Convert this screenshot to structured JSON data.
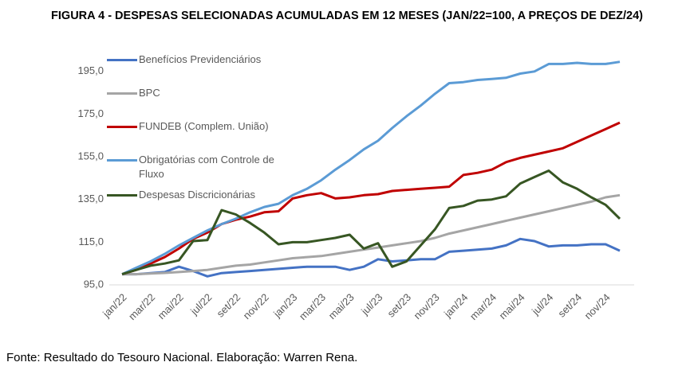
{
  "chart_data": {
    "type": "line",
    "title": "FIGURA 4 - DESPESAS SELECIONADAS ACUMULADAS EM 12 MESES (JAN/22=100, A PREÇOS DE DEZ/24)",
    "source": "Fonte: Resultado do Tesouro Nacional. Elaboração: Warren Rena.",
    "categories": [
      "jan/22",
      null,
      "mar/22",
      null,
      "mai/22",
      null,
      "jul/22",
      null,
      "set/22",
      null,
      "nov/22",
      null,
      "jan/23",
      null,
      "mar/23",
      null,
      "mai/23",
      null,
      "jul/23",
      null,
      "set/23",
      null,
      "nov/23",
      null,
      "jan/24",
      null,
      "mar/24",
      null,
      "mai/24",
      null,
      "jul/24",
      null,
      "set/24",
      null,
      "nov/24",
      null
    ],
    "series": [
      {
        "name": "Benefícios Previdenciários",
        "color": "#4472c4",
        "values": [
          100,
          100,
          100.5,
          101,
          103.5,
          101.5,
          99,
          100.5,
          101,
          101.5,
          102,
          102.5,
          103,
          103.5,
          103.5,
          103.5,
          102,
          103.5,
          107,
          106,
          106.5,
          107,
          107,
          110.5,
          111,
          111.5,
          112,
          113.5,
          116.5,
          115.5,
          113,
          113.5,
          113.5,
          114,
          114,
          111
        ]
      },
      {
        "name": "BPC",
        "color": "#a5a5a5",
        "values": [
          100,
          100,
          100.3,
          100.6,
          101,
          101.5,
          102,
          103,
          104,
          104.5,
          105.5,
          106.5,
          107.5,
          108,
          108.5,
          109.5,
          110.5,
          111.5,
          112.5,
          113.5,
          114.5,
          115.5,
          117,
          119,
          120.5,
          122,
          123.5,
          125,
          126.5,
          128,
          129.5,
          131,
          132.5,
          134,
          136,
          137
        ]
      },
      {
        "name": "FUNDEB (Complem. União)",
        "color": "#c00000",
        "values": [
          100,
          102,
          105,
          108,
          112,
          116.5,
          119.5,
          123.5,
          125.5,
          127,
          129,
          129.5,
          135.5,
          137,
          138,
          135.5,
          136,
          137,
          137.5,
          139,
          139.5,
          140,
          140.5,
          141,
          146.5,
          147.5,
          149,
          152.5,
          154.5,
          156,
          157.5,
          159,
          162,
          165,
          168,
          171
        ]
      },
      {
        "name": "Obrigatórias com Controle de Fluxo",
        "color": "#5b9bd5",
        "values": [
          100,
          103,
          106,
          109.5,
          113.5,
          117,
          120.5,
          123.5,
          126,
          129,
          131.5,
          133,
          137,
          140,
          144,
          149,
          153.5,
          158.5,
          162.5,
          168.5,
          174,
          179,
          184.5,
          189.5,
          190,
          191,
          191.5,
          192,
          194,
          195,
          198.5,
          198.5,
          199,
          198.5,
          198.5,
          199.5
        ]
      },
      {
        "name": "Despesas Discricionárias",
        "color": "#375623",
        "values": [
          100,
          102,
          104,
          105,
          106.5,
          115.5,
          116,
          130,
          128,
          124,
          119.5,
          114,
          115,
          115,
          116,
          117,
          118.5,
          112,
          114.5,
          103.5,
          106,
          113.5,
          121,
          131,
          132,
          134.5,
          135,
          136.5,
          142.5,
          145.5,
          148.5,
          143,
          140,
          136,
          132.5,
          126
        ]
      }
    ],
    "ylim": [
      95,
      202
    ],
    "yticks": [
      {
        "value": 95,
        "label": "95,0"
      },
      {
        "value": 115,
        "label": "115,0"
      },
      {
        "value": 135,
        "label": "135,0"
      },
      {
        "value": 155,
        "label": "155,0"
      },
      {
        "value": 175,
        "label": "175,0"
      },
      {
        "value": 195,
        "label": "195,0"
      }
    ],
    "legend": "left"
  }
}
